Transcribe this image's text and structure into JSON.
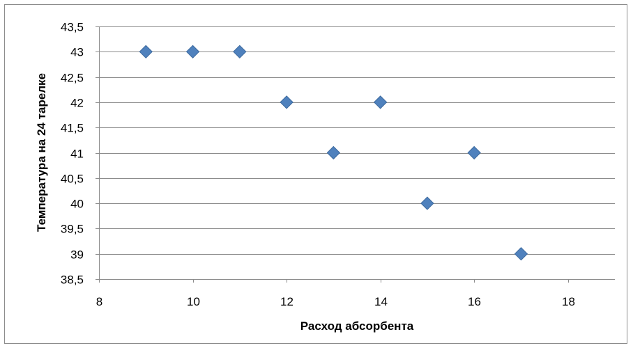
{
  "chart_data": {
    "type": "scatter",
    "title": "",
    "xlabel": "Расход абсорбента",
    "ylabel": "Температура на 24 тарелке",
    "xlim": [
      8,
      19
    ],
    "ylim": [
      38.5,
      43.5
    ],
    "x_ticks": [
      8,
      10,
      12,
      14,
      16,
      18
    ],
    "x_tick_labels": [
      "8",
      "10",
      "12",
      "14",
      "16",
      "18"
    ],
    "y_ticks": [
      38.5,
      39,
      39.5,
      40,
      40.5,
      41,
      41.5,
      42,
      42.5,
      43,
      43.5
    ],
    "y_tick_labels": [
      "38,5",
      "39",
      "39,5",
      "40",
      "40,5",
      "41",
      "41,5",
      "42",
      "42,5",
      "43",
      "43,5"
    ],
    "grid": "horizontal",
    "legend": "none",
    "marker": "diamond",
    "series_color": "#4f81bd",
    "series": [
      {
        "points": [
          {
            "x": 9,
            "y": 43
          },
          {
            "x": 10,
            "y": 43
          },
          {
            "x": 11,
            "y": 43
          },
          {
            "x": 12,
            "y": 42
          },
          {
            "x": 13,
            "y": 41
          },
          {
            "x": 14,
            "y": 42
          },
          {
            "x": 15,
            "y": 40
          },
          {
            "x": 16,
            "y": 41
          },
          {
            "x": 17,
            "y": 39
          }
        ]
      }
    ]
  }
}
